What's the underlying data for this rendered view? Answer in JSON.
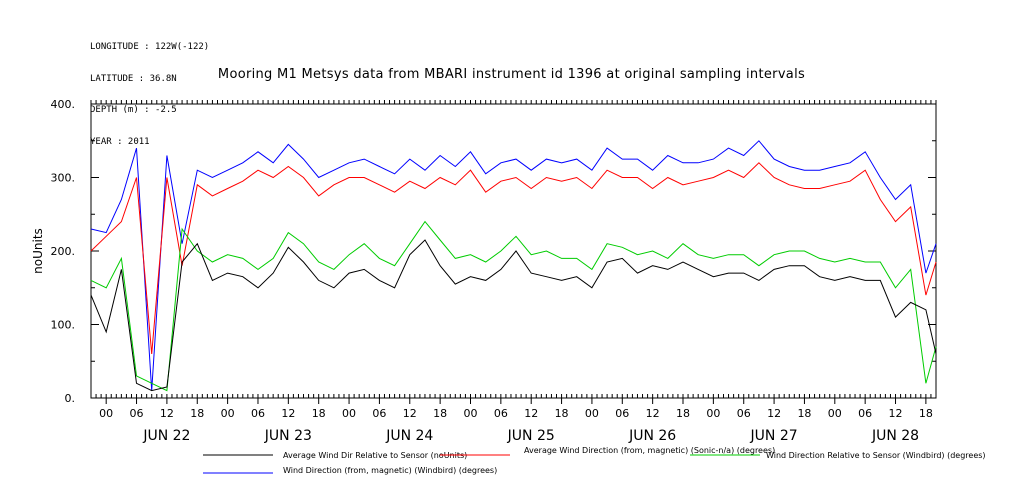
{
  "header": {
    "longitude": "LONGITUDE : 122W(-122)",
    "latitude": "LATITUDE : 36.8N",
    "depth": "DEPTH (m) : -2.5",
    "year": "YEAR : 2011"
  },
  "chart_data": {
    "type": "line",
    "title": "Mooring M1 Metsys data from MBARI instrument id 1396 at original sampling intervals",
    "ylabel": "noUnits",
    "xlabel": "",
    "ylim": [
      0,
      400
    ],
    "yticks": [
      0,
      100,
      200,
      300,
      400
    ],
    "ytick_labels": [
      "0.",
      "100.",
      "200.",
      "300.",
      "400."
    ],
    "xlim": [
      "2011-06-21 21:00",
      "2011-06-28 20:00"
    ],
    "hour_tick_labels": [
      "00",
      "06",
      "12",
      "18",
      "00",
      "06",
      "12",
      "18",
      "00",
      "06",
      "12",
      "18",
      "00",
      "06",
      "12",
      "18",
      "00",
      "06",
      "12",
      "18",
      "00",
      "06",
      "12",
      "18",
      "00",
      "06",
      "12",
      "18"
    ],
    "day_labels": [
      "JUN 22",
      "JUN 23",
      "JUN 24",
      "JUN 25",
      "JUN 26",
      "JUN 27",
      "JUN 28"
    ],
    "grid": false,
    "legend_position": "bottom",
    "x_hours": [
      0,
      3,
      6,
      9,
      12,
      15,
      18,
      21,
      24,
      27,
      30,
      33,
      36,
      39,
      42,
      45,
      48,
      51,
      54,
      57,
      60,
      63,
      66,
      69,
      72,
      75,
      78,
      81,
      84,
      87,
      90,
      93,
      96,
      99,
      102,
      105,
      108,
      111,
      114,
      117,
      120,
      123,
      126,
      129,
      132,
      135,
      138,
      141,
      144,
      147,
      150,
      153,
      156,
      159,
      162,
      165,
      167
    ],
    "series": [
      {
        "name": "Average Wind Dir Relative to Sensor (noUnits)",
        "color": "#000000",
        "values": [
          140,
          90,
          175,
          20,
          10,
          15,
          185,
          210,
          160,
          170,
          165,
          150,
          170,
          205,
          185,
          160,
          150,
          170,
          175,
          160,
          150,
          195,
          215,
          180,
          155,
          165,
          160,
          175,
          200,
          170,
          165,
          160,
          165,
          150,
          185,
          190,
          170,
          180,
          175,
          185,
          175,
          165,
          170,
          170,
          160,
          175,
          180,
          180,
          165,
          160,
          165,
          160,
          160,
          110,
          130,
          120,
          60
        ]
      },
      {
        "name": "Average Wind Direction (from, magnetic) (Sonic-n/a) (degrees)",
        "color": "#ff0000",
        "values": [
          200,
          220,
          240,
          300,
          60,
          300,
          180,
          290,
          275,
          285,
          295,
          310,
          300,
          315,
          300,
          275,
          290,
          300,
          300,
          290,
          280,
          295,
          285,
          300,
          290,
          310,
          280,
          295,
          300,
          285,
          300,
          295,
          300,
          285,
          310,
          300,
          300,
          285,
          300,
          290,
          295,
          300,
          310,
          300,
          320,
          300,
          290,
          285,
          285,
          290,
          295,
          310,
          270,
          240,
          260,
          140,
          185
        ]
      },
      {
        "name": "Wind Direction Relative to Sensor (Windbird) (degrees)",
        "color": "#00cc00",
        "values": [
          160,
          150,
          190,
          30,
          20,
          10,
          230,
          200,
          185,
          195,
          190,
          175,
          190,
          225,
          210,
          185,
          175,
          195,
          210,
          190,
          180,
          210,
          240,
          215,
          190,
          195,
          185,
          200,
          220,
          195,
          200,
          190,
          190,
          175,
          210,
          205,
          195,
          200,
          190,
          210,
          195,
          190,
          195,
          195,
          180,
          195,
          200,
          200,
          190,
          185,
          190,
          185,
          185,
          150,
          175,
          20,
          70
        ]
      },
      {
        "name": "Wind Direction (from, magnetic) (Windbird) (degrees)",
        "color": "#0000ff",
        "values": [
          230,
          225,
          270,
          340,
          10,
          330,
          210,
          310,
          300,
          310,
          320,
          335,
          320,
          345,
          325,
          300,
          310,
          320,
          325,
          315,
          305,
          325,
          310,
          330,
          315,
          335,
          305,
          320,
          325,
          310,
          325,
          320,
          325,
          310,
          340,
          325,
          325,
          310,
          330,
          320,
          320,
          325,
          340,
          330,
          350,
          325,
          315,
          310,
          310,
          315,
          320,
          335,
          300,
          270,
          290,
          170,
          210
        ]
      }
    ],
    "legend": [
      {
        "label": "Average Wind Dir Relative to Sensor (noUnits)",
        "color": "#000000"
      },
      {
        "label": "Average Wind Direction (from, magnetic) (Sonic-n/a) (degrees)",
        "color": "#ff0000"
      },
      {
        "label": "Wind Direction Relative to Sensor (Windbird) (degrees)",
        "color": "#00cc00"
      },
      {
        "label": "Wind Direction (from, magnetic) (Windbird) (degrees)",
        "color": "#0000ff"
      }
    ]
  }
}
